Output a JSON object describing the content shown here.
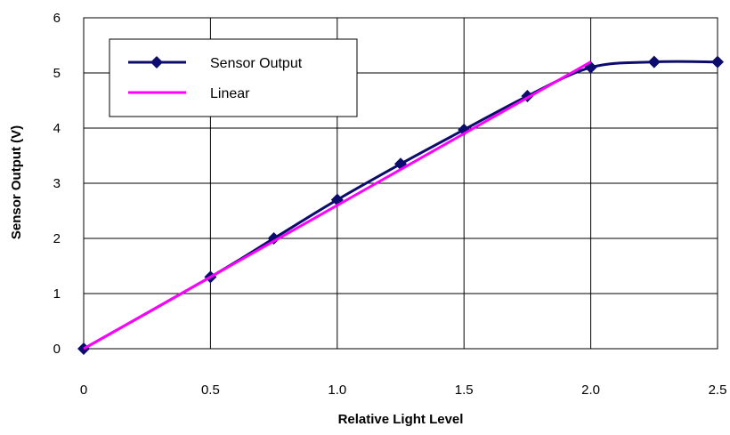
{
  "colors": {
    "sensor": "#0c0c6e",
    "linear": "#ff00ff",
    "grid": "#000000",
    "background": "#ffffff"
  },
  "chart_data": {
    "type": "line",
    "xlabel": "Relative Light Level",
    "ylabel": "Sensor Output (V)",
    "xlim": [
      0,
      2.5
    ],
    "ylim": [
      0,
      6
    ],
    "x_ticks": [
      0,
      0.5,
      1.0,
      1.5,
      2.0,
      2.5
    ],
    "x_tick_labels": [
      "0",
      "0.5",
      "1.0",
      "1.5",
      "2.0",
      "2.5"
    ],
    "y_ticks": [
      0,
      1,
      2,
      3,
      4,
      5,
      6
    ],
    "y_tick_labels": [
      "0",
      "1",
      "2",
      "3",
      "4",
      "5",
      "6"
    ],
    "grid": true,
    "legend_position": "top-left",
    "series": [
      {
        "name": "Sensor Output",
        "marker": "diamond",
        "smooth": true,
        "x": [
          0,
          0.5,
          0.75,
          1.0,
          1.25,
          1.5,
          1.75,
          2.0,
          2.25,
          2.5
        ],
        "y": [
          0,
          1.3,
          2.0,
          2.7,
          3.35,
          3.97,
          4.58,
          5.1,
          5.2,
          5.2
        ]
      },
      {
        "name": "Linear",
        "marker": "none",
        "smooth": false,
        "x": [
          0,
          2.0
        ],
        "y": [
          0,
          5.2
        ]
      }
    ]
  }
}
